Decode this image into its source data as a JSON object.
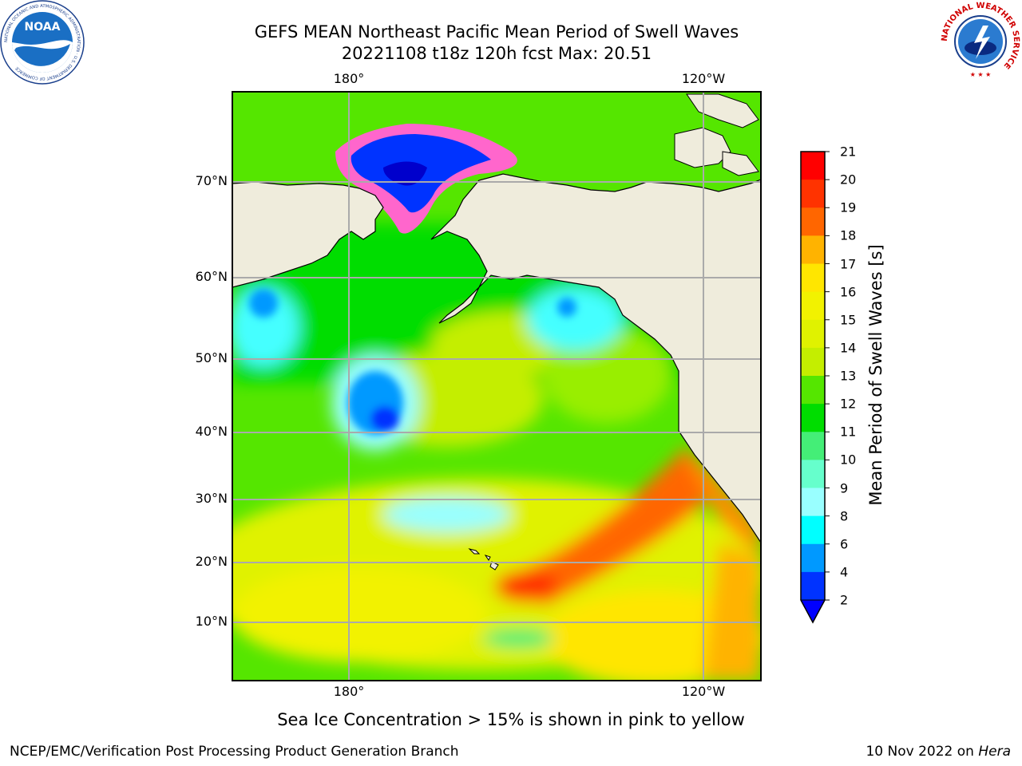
{
  "title": {
    "line1": "GEFS MEAN Northeast Pacific Mean Period of Swell Waves",
    "line2": "20221108 t18z 120h fcst   Max: 20.51"
  },
  "logos": {
    "left": "noaa-logo",
    "right": "national-weather-service-logo",
    "left_text": "NATIONAL OCEANIC AND ATMOSPHERIC ADMINISTRATION · U.S. DEPARTMENT OF COMMERCE",
    "left_word": "NOAA",
    "right_text": "NATIONAL WEATHER SERVICE"
  },
  "map": {
    "lon_labels_top": [
      "180°",
      "120°W"
    ],
    "lon_labels_bottom": [
      "180°",
      "120°W"
    ],
    "lat_labels": [
      "70°N",
      "60°N",
      "50°N",
      "40°N",
      "30°N",
      "20°N",
      "10°N"
    ],
    "gridline_color": "#aaaaaa",
    "land_color": "#efecdc",
    "sea_ice_colors": [
      "#ff66cc",
      "#ffcc00"
    ]
  },
  "colorbar": {
    "label": "Mean Period of Swell Waves [s]",
    "ticks": [
      "21",
      "20",
      "19",
      "18",
      "17",
      "16",
      "15",
      "14",
      "13",
      "12",
      "11",
      "10",
      "9",
      "8",
      "6",
      "4",
      "2"
    ],
    "colors": [
      "#ff0000",
      "#ff3300",
      "#ff6600",
      "#ff8c00",
      "#ffb300",
      "#ffe600",
      "#f2f200",
      "#e0f200",
      "#c4ee00",
      "#99ee00",
      "#55e600",
      "#00dd00",
      "#44ee77",
      "#66ffcc",
      "#99ffff",
      "#44ffff",
      "#00ffff",
      "#0099ff",
      "#0033ff"
    ],
    "extend_color": "#0000ff"
  },
  "note": "Sea Ice Concentration > 15% is shown in pink to yellow",
  "footer": {
    "left": "NCEP/EMC/Verification Post Processing Product Generation Branch",
    "right_date": "10 Nov 2022 on",
    "right_machine": "Hera"
  }
}
